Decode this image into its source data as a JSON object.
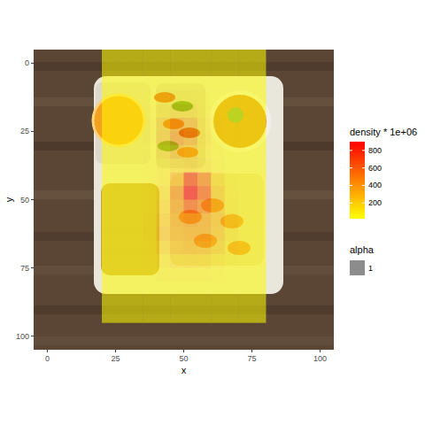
{
  "chart_data": {
    "type": "heatmap",
    "xlabel": "x",
    "ylabel": "y",
    "xlim": [
      -5,
      105
    ],
    "ylim": [
      105,
      -5
    ],
    "xticks": [
      0,
      25,
      50,
      75,
      100
    ],
    "yticks": [
      0,
      25,
      50,
      75,
      100
    ],
    "grid": false,
    "density": {
      "x": [
        22.5,
        27.5,
        32.5,
        37.5,
        42.5,
        47.5,
        52.5,
        57.5,
        62.5,
        67.5,
        72.5,
        77.5
      ],
      "y": [
        -2.5,
        2.5,
        7.5,
        12.5,
        17.5,
        22.5,
        27.5,
        32.5,
        37.5,
        42.5,
        47.5,
        52.5,
        57.5,
        62.5,
        67.5,
        72.5,
        77.5,
        82.5,
        87.5,
        92.5
      ],
      "z": [
        [
          30,
          30,
          30,
          30,
          30,
          30,
          30,
          30,
          30,
          30,
          30,
          30
        ],
        [
          30,
          30,
          30,
          30,
          30,
          30,
          30,
          30,
          30,
          30,
          30,
          30
        ],
        [
          30,
          30,
          30,
          30,
          30,
          30,
          30,
          30,
          30,
          30,
          30,
          30
        ],
        [
          30,
          30,
          30,
          30,
          40,
          50,
          50,
          40,
          30,
          30,
          30,
          30
        ],
        [
          30,
          30,
          30,
          40,
          80,
          120,
          110,
          60,
          30,
          30,
          30,
          30
        ],
        [
          30,
          30,
          30,
          50,
          150,
          300,
          250,
          90,
          40,
          30,
          30,
          30
        ],
        [
          30,
          30,
          30,
          50,
          180,
          350,
          280,
          100,
          40,
          30,
          30,
          30
        ],
        [
          30,
          30,
          30,
          40,
          120,
          220,
          180,
          80,
          40,
          30,
          30,
          30
        ],
        [
          30,
          30,
          30,
          40,
          70,
          120,
          150,
          100,
          50,
          30,
          30,
          30
        ],
        [
          30,
          30,
          30,
          40,
          80,
          250,
          700,
          450,
          120,
          40,
          30,
          30
        ],
        [
          30,
          30,
          30,
          50,
          120,
          400,
          900,
          600,
          180,
          50,
          30,
          30
        ],
        [
          30,
          30,
          30,
          50,
          150,
          350,
          600,
          450,
          200,
          60,
          30,
          30
        ],
        [
          30,
          30,
          30,
          60,
          200,
          300,
          350,
          320,
          220,
          80,
          30,
          30
        ],
        [
          30,
          30,
          30,
          60,
          220,
          280,
          300,
          300,
          200,
          80,
          30,
          30
        ],
        [
          30,
          30,
          30,
          50,
          160,
          220,
          250,
          230,
          150,
          60,
          30,
          30
        ],
        [
          30,
          30,
          30,
          40,
          90,
          120,
          130,
          120,
          80,
          40,
          30,
          30
        ],
        [
          30,
          30,
          30,
          30,
          50,
          60,
          60,
          60,
          40,
          30,
          30,
          30
        ],
        [
          30,
          30,
          30,
          30,
          30,
          30,
          30,
          30,
          30,
          30,
          30,
          30
        ],
        [
          30,
          30,
          30,
          30,
          30,
          30,
          30,
          30,
          30,
          30,
          30,
          30
        ],
        [
          30,
          30,
          30,
          30,
          30,
          30,
          30,
          30,
          30,
          30,
          30,
          30
        ]
      ]
    },
    "colorbar": {
      "title": "density * 1e+06",
      "range": [
        20,
        900
      ],
      "ticks": [
        200,
        400,
        600,
        800
      ]
    },
    "alpha_legend": {
      "title": "alpha",
      "labels": [
        1
      ]
    }
  }
}
